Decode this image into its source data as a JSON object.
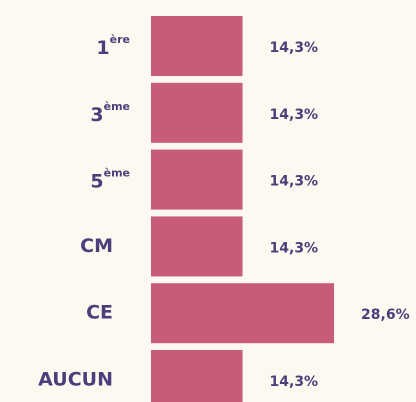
{
  "chart_data": {
    "type": "bar",
    "orientation": "horizontal",
    "categories": [
      "1ère",
      "3ème",
      "5ème",
      "CM",
      "CE",
      "AUCUN"
    ],
    "values": [
      14.3,
      14.3,
      14.3,
      14.3,
      28.6,
      14.3
    ],
    "value_labels": [
      "14,3%",
      "14,3%",
      "14,3%",
      "14,3%",
      "28,6%",
      "14,3%"
    ],
    "color": "#c85b78"
  }
}
